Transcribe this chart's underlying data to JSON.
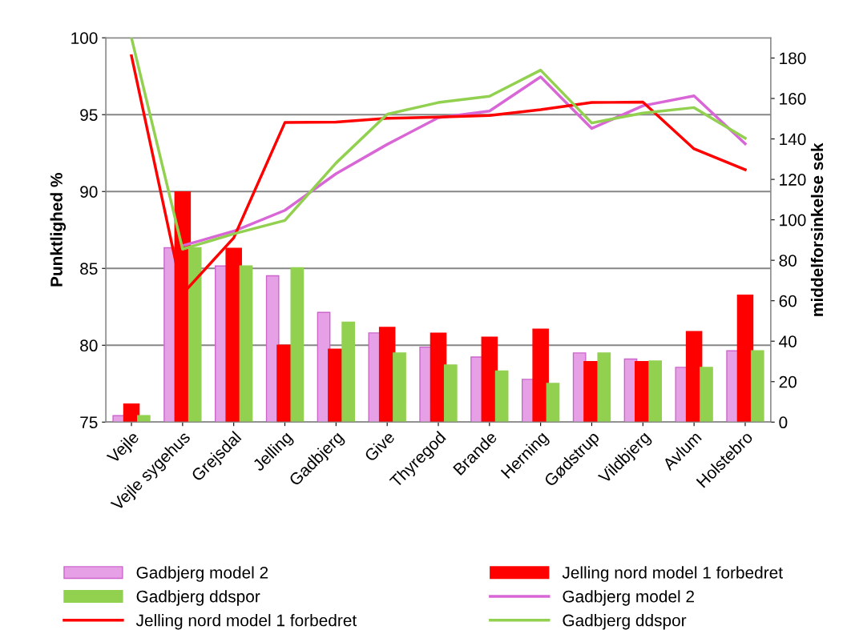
{
  "chart_data": {
    "type": "bar",
    "ylabel": "Punktlighed %",
    "y2label": "middelforsinkelse sek",
    "categories": [
      "Vejle",
      "Vejle sygehus",
      "Grejsdal",
      "Jelling",
      "Gadbjerg",
      "Give",
      "Thyregod",
      "Brande",
      "Herning",
      "Gødstrup",
      "Vildbjerg",
      "Avlum",
      "Holstebro"
    ],
    "series": [
      {
        "name": "Gadbjerg model 2",
        "color": "#e6a1e6",
        "values": [
          75.42,
          86.34,
          85.16,
          84.52,
          82.14,
          80.8,
          79.88,
          79.23,
          77.78,
          79.5,
          79.1,
          78.56,
          79.64
        ]
      },
      {
        "name": "Jelling nord model 1 forbedret",
        "color": "#ff0000",
        "values": [
          76.18,
          89.98,
          86.3,
          80.0,
          79.74,
          81.16,
          80.78,
          80.52,
          81.04,
          78.94,
          78.94,
          80.89,
          83.26
        ]
      },
      {
        "name": "Gadbjerg ddspor",
        "color": "#92d050",
        "values": [
          75.42,
          86.34,
          85.16,
          85.04,
          81.5,
          79.5,
          78.71,
          78.32,
          77.52,
          79.5,
          78.97,
          78.56,
          79.64
        ]
      },
      {
        "name": "Gadbjerg model 2",
        "type": "line",
        "axis": "y2",
        "color": "#d966d6",
        "values": [
          null,
          87.2,
          94.4,
          104.7,
          122.8,
          137.3,
          150.5,
          153.8,
          170.7,
          145.2,
          156.4,
          161.3,
          137.6
        ]
      },
      {
        "name": "Jelling nord model 1 forbedret",
        "type": "line",
        "axis": "y2",
        "color": "#ff0000",
        "values": [
          181.1,
          63.4,
          91.1,
          148.1,
          148.3,
          150.2,
          150.8,
          151.6,
          154.5,
          158.0,
          158.2,
          135.1,
          124.8
        ]
      },
      {
        "name": "Gadbjerg ddspor",
        "type": "line",
        "axis": "y2",
        "color": "#92d050",
        "values": [
          190,
          85.5,
          93.1,
          99.7,
          128.1,
          152.2,
          158.0,
          161.1,
          174.0,
          147.9,
          152.8,
          155.5,
          140.4
        ]
      }
    ],
    "ylim": [
      75,
      100
    ],
    "yticks": [
      75,
      80,
      85,
      90,
      95,
      100
    ],
    "y2lim": [
      0,
      190
    ],
    "y2ticks": [
      0,
      20,
      40,
      60,
      80,
      100,
      120,
      140,
      160,
      180
    ],
    "grid": "y",
    "legend": "bottom",
    "marker": "none",
    "line_style": "solid"
  }
}
